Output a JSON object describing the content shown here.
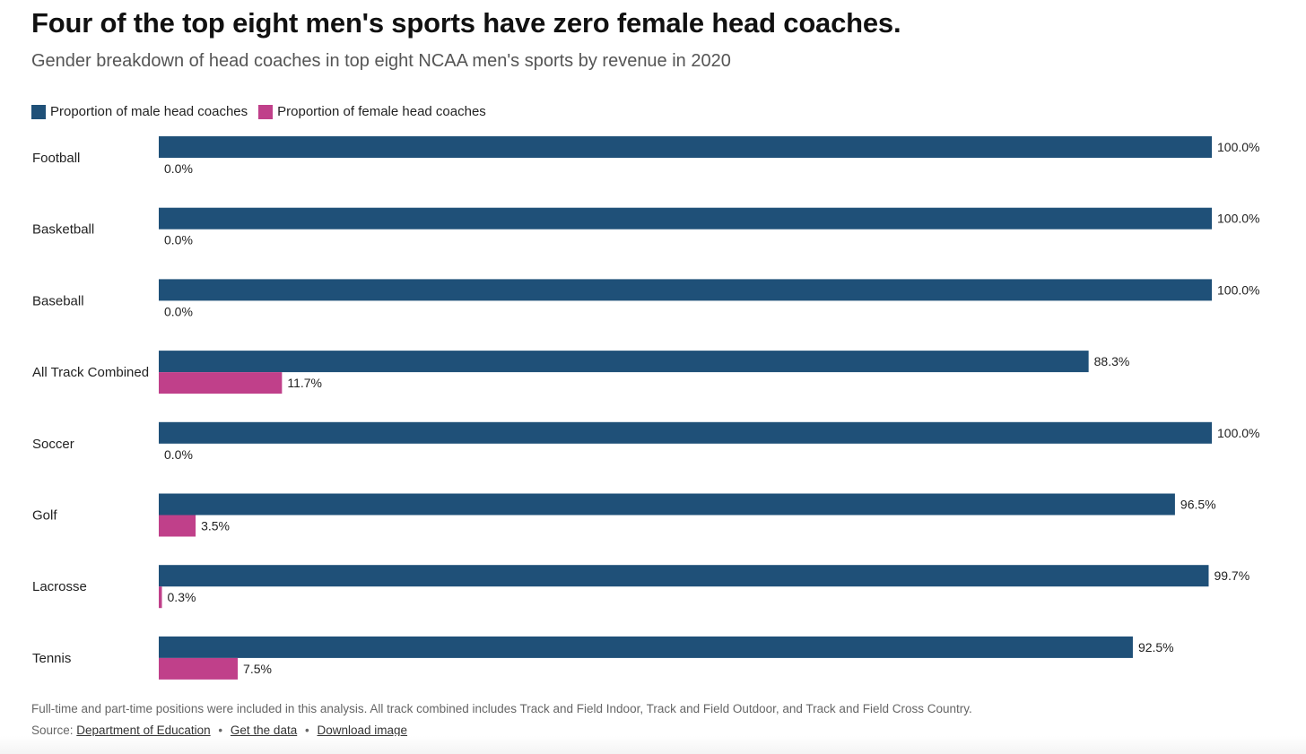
{
  "title": "Four of the top eight men's sports have zero female head coaches.",
  "subtitle": "Gender breakdown of head coaches in top eight NCAA men's sports by revenue in 2020",
  "colors": {
    "male": "#1f5078",
    "female": "#c0408a"
  },
  "chart_data": {
    "type": "bar",
    "orientation": "horizontal",
    "categories": [
      "Football",
      "Basketball",
      "Baseball",
      "All Track Combined",
      "Soccer",
      "Golf",
      "Lacrosse",
      "Tennis"
    ],
    "series": [
      {
        "name": "Proportion of male head coaches",
        "values": [
          100.0,
          100.0,
          100.0,
          88.3,
          100.0,
          96.5,
          99.7,
          92.5
        ]
      },
      {
        "name": "Proportion of female head coaches",
        "values": [
          0.0,
          0.0,
          0.0,
          11.7,
          0.0,
          3.5,
          0.3,
          7.5
        ]
      }
    ],
    "value_labels": [
      [
        "100.0%",
        "100.0%",
        "100.0%",
        "88.3%",
        "100.0%",
        "96.5%",
        "99.7%",
        "92.5%"
      ],
      [
        "0.0%",
        "0.0%",
        "0.0%",
        "11.7%",
        "0.0%",
        "3.5%",
        "0.3%",
        "7.5%"
      ]
    ],
    "xlim": [
      0,
      100
    ],
    "grid": false,
    "legend_position": "top-left"
  },
  "footer": {
    "note": "Full-time and part-time positions were included in this analysis. All track combined includes Track and Field Indoor, Track and Field Outdoor, and Track and Field Cross Country.",
    "source_label": "Source:",
    "source_link": "Department of Education",
    "separator": "•",
    "get_data": "Get the data",
    "download": "Download image"
  }
}
